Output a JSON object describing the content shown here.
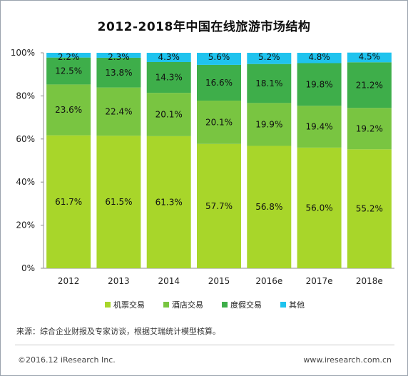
{
  "title": "2012-2018年中国在线旅游市场结构",
  "source_note": "来源：综合企业财报及专家访谈，根据艾瑞统计模型核算。",
  "copyright": "©2016.12 iResearch Inc.",
  "website": "www.iresearch.com.cn",
  "colors": {
    "机票交易": "#a8d62a",
    "酒店交易": "#79c541",
    "度假交易": "#3eae4a",
    "其他": "#1fc3ee"
  },
  "chart_data": {
    "type": "bar",
    "stacked": true,
    "title": "2012-2018年中国在线旅游市场结构",
    "categories": [
      "2012",
      "2013",
      "2014",
      "2015",
      "2016e",
      "2017e",
      "2018e"
    ],
    "y_ticks": [
      "0%",
      "20%",
      "40%",
      "60%",
      "80%",
      "100%"
    ],
    "ylim": [
      0,
      100
    ],
    "grid": false,
    "legend_position": "bottom",
    "series": [
      {
        "name": "机票交易",
        "values": [
          61.7,
          61.5,
          61.3,
          57.7,
          56.8,
          56.0,
          55.2
        ],
        "labels": [
          "61.7%",
          "61.5%",
          "61.3%",
          "57.7%",
          "56.8%",
          "56.0%",
          "55.2%"
        ]
      },
      {
        "name": "酒店交易",
        "values": [
          23.6,
          22.4,
          20.1,
          20.1,
          19.9,
          19.4,
          19.2
        ],
        "labels": [
          "23.6%",
          "22.4%",
          "20.1%",
          "20.1%",
          "19.9%",
          "19.4%",
          "19.2%"
        ]
      },
      {
        "name": "度假交易",
        "values": [
          12.5,
          13.8,
          14.3,
          16.6,
          18.1,
          19.8,
          21.2
        ],
        "labels": [
          "12.5%",
          "13.8%",
          "14.3%",
          "16.6%",
          "18.1%",
          "19.8%",
          "21.2%"
        ]
      },
      {
        "name": "其他",
        "values": [
          2.2,
          2.3,
          4.3,
          5.6,
          5.2,
          4.8,
          4.5
        ],
        "labels": [
          "2.2%",
          "2.3%",
          "4.3%",
          "5.6%",
          "5.2%",
          "4.8%",
          "4.5%"
        ]
      }
    ]
  }
}
